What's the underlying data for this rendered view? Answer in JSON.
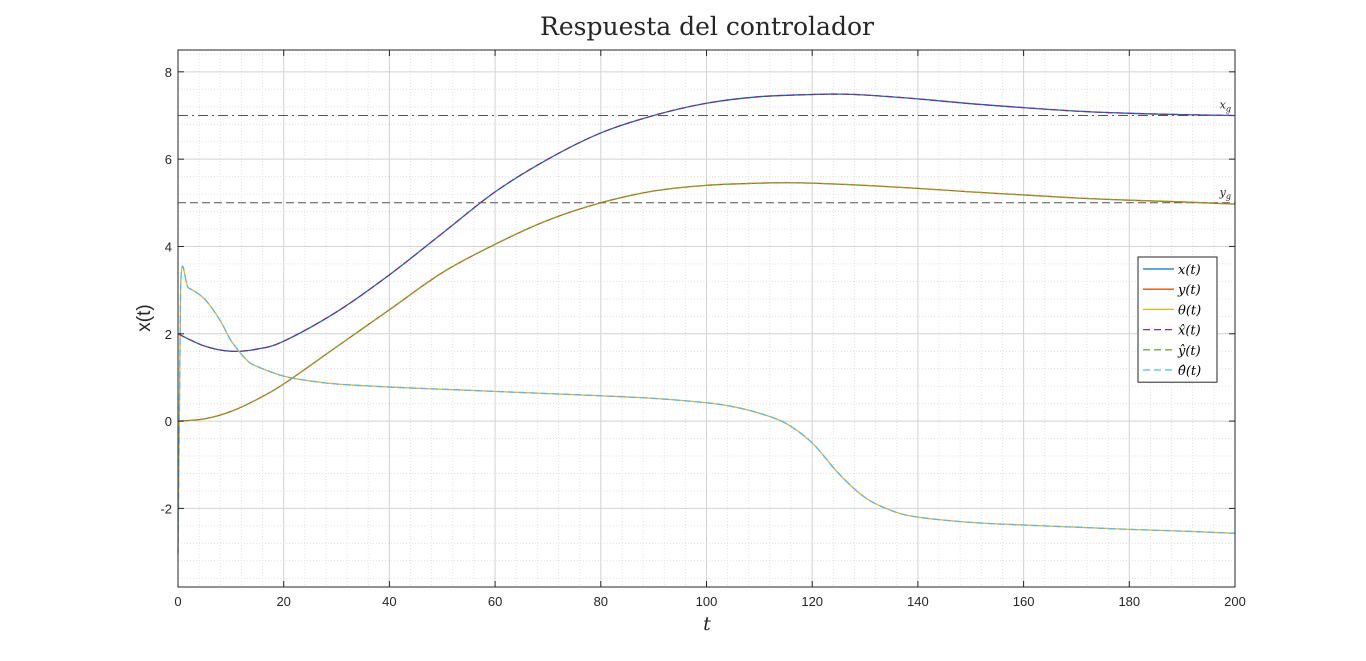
{
  "chart_data": {
    "type": "line",
    "title": "Respuesta del controlador",
    "xlabel": "t",
    "ylabel": "x(t)",
    "xlim": [
      0,
      200
    ],
    "ylim": [
      -3.8,
      8.5
    ],
    "xticks": [
      0,
      20,
      40,
      60,
      80,
      100,
      120,
      140,
      160,
      180,
      200
    ],
    "yticks": [
      -2,
      0,
      2,
      4,
      6,
      8
    ],
    "grid": true,
    "minor_grid": true,
    "legend_position": "right",
    "reference_lines": [
      {
        "label": "x_g",
        "value": 7,
        "style": "dash-dot",
        "color": "#555555"
      },
      {
        "label": "y_g",
        "value": 5,
        "style": "dashed",
        "color": "#555555"
      }
    ],
    "series": [
      {
        "name": "x(t)",
        "legend": "x(t)",
        "color": "#0072BD",
        "style": "solid",
        "points": [
          [
            0,
            2
          ],
          [
            5,
            1.72
          ],
          [
            10,
            1.6
          ],
          [
            15,
            1.65
          ],
          [
            20,
            1.83
          ],
          [
            30,
            2.5
          ],
          [
            40,
            3.35
          ],
          [
            50,
            4.3
          ],
          [
            60,
            5.25
          ],
          [
            70,
            6.0
          ],
          [
            80,
            6.6
          ],
          [
            90,
            7.0
          ],
          [
            100,
            7.28
          ],
          [
            110,
            7.43
          ],
          [
            120,
            7.48
          ],
          [
            125,
            7.49
          ],
          [
            130,
            7.47
          ],
          [
            140,
            7.38
          ],
          [
            150,
            7.27
          ],
          [
            160,
            7.18
          ],
          [
            170,
            7.1
          ],
          [
            180,
            7.05
          ],
          [
            190,
            7.02
          ],
          [
            200,
            7.0
          ]
        ]
      },
      {
        "name": "y(t)",
        "legend": "y(t)",
        "color": "#D95319",
        "style": "solid",
        "points": [
          [
            0,
            0
          ],
          [
            5,
            0.05
          ],
          [
            10,
            0.22
          ],
          [
            15,
            0.5
          ],
          [
            20,
            0.85
          ],
          [
            30,
            1.7
          ],
          [
            40,
            2.55
          ],
          [
            50,
            3.4
          ],
          [
            60,
            4.05
          ],
          [
            70,
            4.6
          ],
          [
            80,
            5.0
          ],
          [
            90,
            5.27
          ],
          [
            100,
            5.4
          ],
          [
            110,
            5.45
          ],
          [
            115,
            5.46
          ],
          [
            120,
            5.45
          ],
          [
            130,
            5.4
          ],
          [
            140,
            5.33
          ],
          [
            150,
            5.25
          ],
          [
            160,
            5.18
          ],
          [
            170,
            5.11
          ],
          [
            180,
            5.06
          ],
          [
            190,
            5.02
          ],
          [
            200,
            4.97
          ]
        ]
      },
      {
        "name": "θ(t)",
        "legend": "θ(t)",
        "color": "#EDB120",
        "style": "solid",
        "points": [
          [
            0,
            -3.05
          ],
          [
            0.5,
            3.1
          ],
          [
            2,
            3.05
          ],
          [
            5,
            2.8
          ],
          [
            8,
            2.3
          ],
          [
            10,
            1.85
          ],
          [
            13,
            1.4
          ],
          [
            15,
            1.25
          ],
          [
            20,
            1.03
          ],
          [
            25,
            0.92
          ],
          [
            30,
            0.85
          ],
          [
            40,
            0.78
          ],
          [
            50,
            0.73
          ],
          [
            60,
            0.68
          ],
          [
            70,
            0.63
          ],
          [
            80,
            0.58
          ],
          [
            90,
            0.52
          ],
          [
            100,
            0.42
          ],
          [
            105,
            0.33
          ],
          [
            110,
            0.18
          ],
          [
            115,
            -0.05
          ],
          [
            120,
            -0.5
          ],
          [
            125,
            -1.2
          ],
          [
            130,
            -1.75
          ],
          [
            135,
            -2.05
          ],
          [
            140,
            -2.2
          ],
          [
            150,
            -2.32
          ],
          [
            160,
            -2.38
          ],
          [
            170,
            -2.43
          ],
          [
            180,
            -2.48
          ],
          [
            190,
            -2.52
          ],
          [
            200,
            -2.57
          ]
        ]
      },
      {
        "name": "x̂(t)",
        "legend": "x̂(t)",
        "color": "#7E2F8E",
        "style": "dashed",
        "points": [
          [
            0,
            2
          ],
          [
            5,
            1.72
          ],
          [
            10,
            1.6
          ],
          [
            15,
            1.65
          ],
          [
            20,
            1.83
          ],
          [
            30,
            2.5
          ],
          [
            40,
            3.35
          ],
          [
            50,
            4.3
          ],
          [
            60,
            5.25
          ],
          [
            70,
            6.0
          ],
          [
            80,
            6.6
          ],
          [
            90,
            7.0
          ],
          [
            100,
            7.28
          ],
          [
            110,
            7.43
          ],
          [
            120,
            7.48
          ],
          [
            125,
            7.49
          ],
          [
            130,
            7.47
          ],
          [
            140,
            7.38
          ],
          [
            150,
            7.27
          ],
          [
            160,
            7.18
          ],
          [
            170,
            7.1
          ],
          [
            180,
            7.05
          ],
          [
            190,
            7.02
          ],
          [
            200,
            7.0
          ]
        ]
      },
      {
        "name": "ŷ(t)",
        "legend": "ŷ(t)",
        "color": "#77AC30",
        "style": "dashed",
        "points": [
          [
            0,
            0
          ],
          [
            5,
            0.05
          ],
          [
            10,
            0.22
          ],
          [
            15,
            0.5
          ],
          [
            20,
            0.85
          ],
          [
            30,
            1.7
          ],
          [
            40,
            2.55
          ],
          [
            50,
            3.4
          ],
          [
            60,
            4.05
          ],
          [
            70,
            4.6
          ],
          [
            80,
            5.0
          ],
          [
            90,
            5.27
          ],
          [
            100,
            5.4
          ],
          [
            110,
            5.45
          ],
          [
            115,
            5.46
          ],
          [
            120,
            5.45
          ],
          [
            130,
            5.4
          ],
          [
            140,
            5.33
          ],
          [
            150,
            5.25
          ],
          [
            160,
            5.18
          ],
          [
            170,
            5.11
          ],
          [
            180,
            5.06
          ],
          [
            190,
            5.02
          ],
          [
            200,
            4.97
          ]
        ]
      },
      {
        "name": "θ̂(t)",
        "legend": "θ̂(t)",
        "color": "#4DBEEE",
        "style": "dashed",
        "points": [
          [
            0,
            -3.05
          ],
          [
            0.5,
            3.1
          ],
          [
            2,
            3.05
          ],
          [
            5,
            2.8
          ],
          [
            8,
            2.3
          ],
          [
            10,
            1.85
          ],
          [
            13,
            1.4
          ],
          [
            15,
            1.25
          ],
          [
            20,
            1.03
          ],
          [
            25,
            0.92
          ],
          [
            30,
            0.85
          ],
          [
            40,
            0.78
          ],
          [
            50,
            0.73
          ],
          [
            60,
            0.68
          ],
          [
            70,
            0.63
          ],
          [
            80,
            0.58
          ],
          [
            90,
            0.52
          ],
          [
            100,
            0.42
          ],
          [
            105,
            0.33
          ],
          [
            110,
            0.18
          ],
          [
            115,
            -0.05
          ],
          [
            120,
            -0.5
          ],
          [
            125,
            -1.2
          ],
          [
            130,
            -1.75
          ],
          [
            135,
            -2.05
          ],
          [
            140,
            -2.2
          ],
          [
            150,
            -2.32
          ],
          [
            160,
            -2.38
          ],
          [
            170,
            -2.43
          ],
          [
            180,
            -2.48
          ],
          [
            190,
            -2.52
          ],
          [
            200,
            -2.57
          ]
        ]
      }
    ]
  }
}
